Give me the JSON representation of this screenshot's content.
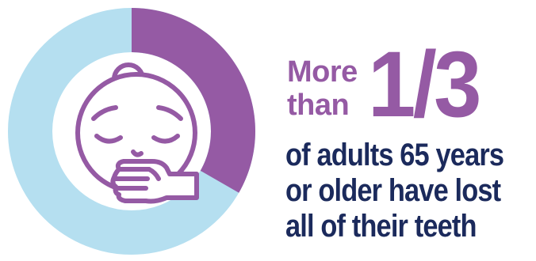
{
  "headline": {
    "lead_line_1": "More",
    "lead_line_2": "than",
    "fraction": "1/3",
    "statement_lines": [
      "of adults 65 years",
      "or older have lost",
      "all of their teeth"
    ]
  },
  "graphic": {
    "share_highlighted": 0.333,
    "icon": "face-covering-mouth-icon",
    "colors": {
      "ring_background": "#b5dff0",
      "ring_highlight": "#955aa4",
      "face_fill": "#ffffff",
      "face_stroke": "#955aa4",
      "statement_text": "#1b2a5c"
    }
  }
}
